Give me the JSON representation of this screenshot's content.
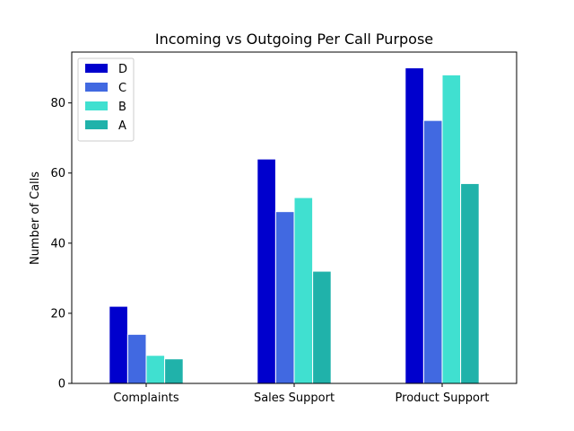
{
  "chart_data": {
    "type": "bar",
    "title": "Incoming vs Outgoing Per Call Purpose",
    "xlabel": "",
    "ylabel": "Number of Calls",
    "categories": [
      "Complaints",
      "Sales Support",
      "Product Support"
    ],
    "series": [
      {
        "name": "D",
        "color": "#0000cd",
        "values": [
          22,
          64,
          90
        ]
      },
      {
        "name": "C",
        "color": "#4169e1",
        "values": [
          14,
          49,
          75
        ]
      },
      {
        "name": "B",
        "color": "#40e0d0",
        "values": [
          8,
          53,
          88
        ]
      },
      {
        "name": "A",
        "color": "#20b2aa",
        "values": [
          7,
          32,
          57
        ]
      }
    ],
    "ylim": [
      0,
      94.5
    ],
    "yticks": [
      0,
      20,
      40,
      60,
      80
    ],
    "grid": false,
    "legend_position": "top-left"
  }
}
